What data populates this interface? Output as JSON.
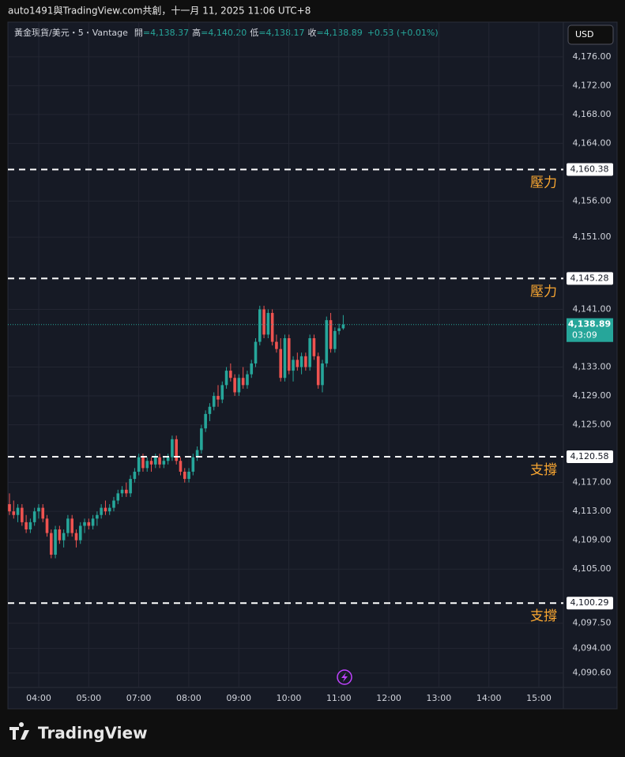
{
  "header": "auto1491與TradingView.com共創，十一月 11, 2025 11:06 UTC+8",
  "footer": "TradingView",
  "chart_data": {
    "type": "candlestick",
    "legend": {
      "symbol": "黃金現貨/美元・5・Vantage",
      "items": [
        {
          "key": "開",
          "value": "=4,138.37"
        },
        {
          "key": "高",
          "value": "=4,140.20"
        },
        {
          "key": "低",
          "value": "=4,138.17"
        },
        {
          "key": "收",
          "value": "=4,138.89"
        }
      ],
      "change": "+0.53 (+0.01%)"
    },
    "currency": "USD",
    "up_color": "#26a69a",
    "down_color": "#ef5350",
    "open": [
      4114,
      4113,
      4112.5,
      4113.5,
      4111.5,
      4110.5,
      4111.5,
      4113,
      4113.5,
      4112,
      4110,
      4107,
      4110.5,
      4109,
      4110,
      4112,
      4110,
      4109,
      4111,
      4111.5,
      4111,
      4112,
      4112.5,
      4113.5,
      4113,
      4113.5,
      4114.5,
      4115.5,
      4116,
      4115.5,
      4117.5,
      4118.5,
      4120.5,
      4119,
      4120,
      4119.5,
      4120.5,
      4119.5,
      4120,
      4120.5,
      4123,
      4120,
      4118.5,
      4117.5,
      4118.5,
      4120.5,
      4121.5,
      4124.5,
      4126.5,
      4127.5,
      4129,
      4128.5,
      4130.5,
      4132.5,
      4131.5,
      4129.5,
      4131.5,
      4130.5,
      4132,
      4133.5,
      4136.5,
      4141,
      4137.5,
      4140.5,
      4136.5,
      4135.5,
      4131.5,
      4137,
      4132.5,
      4134,
      4133,
      4134.5,
      4133,
      4137,
      4134.5,
      4130.5,
      4133.5,
      4139.5,
      4135.5,
      4138,
      4138.37
    ],
    "high": [
      4115.5,
      4114.5,
      4114,
      4114,
      4112.5,
      4112,
      4113.5,
      4114,
      4114,
      4112.5,
      4110.5,
      4111,
      4111,
      4110.5,
      4112.5,
      4112.5,
      4110.5,
      4111.5,
      4112,
      4112,
      4112.5,
      4113,
      4114,
      4114.5,
      4114,
      4115,
      4116,
      4116.5,
      4117,
      4118,
      4119,
      4121,
      4121,
      4120.5,
      4120.5,
      4121,
      4121,
      4120.5,
      4121,
      4123.5,
      4123.5,
      4120.5,
      4119,
      4119,
      4121,
      4122,
      4125,
      4127,
      4128,
      4129.5,
      4130.5,
      4131,
      4133,
      4133.5,
      4132,
      4132,
      4133,
      4132.5,
      4134,
      4137,
      4141.5,
      4141.5,
      4141,
      4141,
      4137.5,
      4137,
      4137.5,
      4137.5,
      4134.5,
      4135,
      4135,
      4135,
      4137.5,
      4137.5,
      4135,
      4134,
      4140,
      4140.5,
      4138.5,
      4139,
      4140.2
    ],
    "low": [
      4112.5,
      4112,
      4111.5,
      4111,
      4110,
      4110,
      4111,
      4112,
      4111.5,
      4109.5,
      4106.5,
      4106.5,
      4108.5,
      4108,
      4109.5,
      4109.5,
      4108,
      4108.5,
      4110,
      4110.5,
      4110.5,
      4111,
      4112,
      4112.5,
      4112.5,
      4113,
      4114,
      4115,
      4115,
      4115,
      4117,
      4118,
      4118.5,
      4118.5,
      4118.5,
      4119,
      4119,
      4119,
      4119.5,
      4120,
      4119.5,
      4118,
      4117,
      4117,
      4118,
      4120,
      4121,
      4124,
      4125.5,
      4127,
      4127.5,
      4128,
      4130,
      4131,
      4129,
      4129,
      4130,
      4130,
      4131.5,
      4133,
      4136,
      4137,
      4137,
      4136,
      4135,
      4131,
      4131,
      4132,
      4131,
      4132.5,
      4132,
      4132.5,
      4132.5,
      4134,
      4130,
      4129.5,
      4133,
      4135,
      4135,
      4137.5,
      4138.17
    ],
    "close": [
      4113,
      4112.5,
      4113.5,
      4111.5,
      4110.5,
      4111.5,
      4113,
      4113.5,
      4112,
      4110,
      4107,
      4110.5,
      4109,
      4110,
      4112,
      4110,
      4109,
      4111,
      4111.5,
      4111,
      4112,
      4112.5,
      4113.5,
      4113,
      4113.5,
      4114.5,
      4115.5,
      4116,
      4115.5,
      4117.5,
      4118.5,
      4120.5,
      4119,
      4120,
      4119.5,
      4120.5,
      4119.5,
      4120,
      4120.5,
      4123,
      4120,
      4118.5,
      4117.5,
      4118.5,
      4120.5,
      4121.5,
      4124.5,
      4126.5,
      4127.5,
      4129,
      4128.5,
      4130.5,
      4132.5,
      4131.5,
      4129.5,
      4131.5,
      4130.5,
      4132,
      4133.5,
      4136.5,
      4141,
      4137.5,
      4140.5,
      4136.5,
      4135.5,
      4131.5,
      4137,
      4132.5,
      4134,
      4133,
      4134.5,
      4133,
      4137,
      4134.5,
      4130.5,
      4133.5,
      4139.5,
      4135.5,
      4138,
      4138.37,
      4138.89
    ],
    "xticks": [
      "04:00",
      "05:00",
      "07:00",
      "08:00",
      "09:00",
      "10:00",
      "11:00",
      "12:00",
      "13:00",
      "14:00",
      "15:00"
    ],
    "ylim": [
      4088.6,
      4180.8
    ],
    "yticks": [
      {
        "value": 4176,
        "label": "4,176.00"
      },
      {
        "value": 4172,
        "label": "4,172.00"
      },
      {
        "value": 4168,
        "label": "4,168.00"
      },
      {
        "value": 4164,
        "label": "4,164.00"
      },
      {
        "value": 4156,
        "label": "4,156.00"
      },
      {
        "value": 4151,
        "label": "4,151.00"
      },
      {
        "value": 4141,
        "label": "4,141.00"
      },
      {
        "value": 4133,
        "label": "4,133.00"
      },
      {
        "value": 4129,
        "label": "4,129.00"
      },
      {
        "value": 4125,
        "label": "4,125.00"
      },
      {
        "value": 4117,
        "label": "4,117.00"
      },
      {
        "value": 4113,
        "label": "4,113.00"
      },
      {
        "value": 4109,
        "label": "4,109.00"
      },
      {
        "value": 4105,
        "label": "4,105.00"
      },
      {
        "value": 4097.5,
        "label": "4,097.50"
      },
      {
        "value": 4094,
        "label": "4,094.00"
      },
      {
        "value": 4090.6,
        "label": "4,090.60"
      }
    ],
    "grid": true,
    "levels": [
      {
        "value": 4160.38,
        "label": "4,160.38",
        "note": "壓力"
      },
      {
        "value": 4145.28,
        "label": "4,145.28",
        "note": "壓力"
      },
      {
        "value": 4120.58,
        "label": "4,120.58",
        "note": "支撐"
      },
      {
        "value": 4100.29,
        "label": "4,100.29",
        "note": "支撐"
      }
    ],
    "last": {
      "value": 4138.89,
      "label": "4,138.89",
      "countdown": "03:09"
    }
  }
}
